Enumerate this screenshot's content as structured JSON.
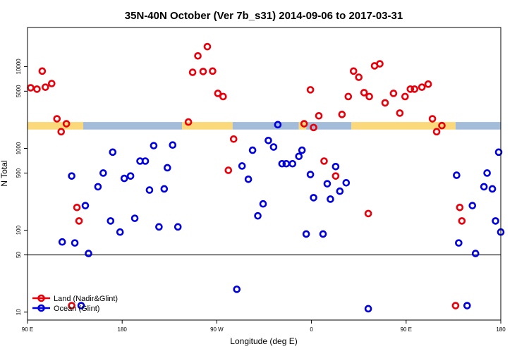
{
  "chart_data": {
    "type": "scatter",
    "title": "35N-40N October (Ver 7b_s31)   2014-09-06 to 2017-03-31",
    "xlabel": "Longitude (deg E)",
    "ylabel": "N Total",
    "x_tick_labels": [
      {
        "x": 90,
        "label": "90 E"
      },
      {
        "x": 180,
        "label": "180"
      },
      {
        "x": 270,
        "label": "90 W"
      },
      {
        "x": 360,
        "label": "0"
      },
      {
        "x": 450,
        "label": "90 E"
      },
      {
        "x": 540,
        "label": "180"
      }
    ],
    "xlim": [
      90,
      540
    ],
    "y_scale": "log",
    "ylim": [
      8,
      30000
    ],
    "y_tick_labels": [
      {
        "y": 10,
        "label": "10"
      },
      {
        "y": 50,
        "label": "50"
      },
      {
        "y": 100,
        "label": "100"
      },
      {
        "y": 500,
        "label": "500"
      },
      {
        "y": 1000,
        "label": "1000"
      },
      {
        "y": 5000,
        "label": "5000"
      },
      {
        "y": 10000,
        "label": "10000"
      }
    ],
    "reference_line_y": 50,
    "surface_band": {
      "y_range": [
        1700,
        2100
      ],
      "land_color": "#fbd87a",
      "ocean_color": "#a3bcd9",
      "segments": [
        {
          "type": "land",
          "x": [
            90,
            143
          ]
        },
        {
          "type": "ocean",
          "x": [
            143,
            237
          ]
        },
        {
          "type": "land",
          "x": [
            237,
            285
          ]
        },
        {
          "type": "ocean",
          "x": [
            285,
            348
          ]
        },
        {
          "type": "land",
          "x": [
            348,
            355
          ]
        },
        {
          "type": "ocean",
          "x": [
            355,
            398
          ]
        },
        {
          "type": "land",
          "x": [
            398,
            497
          ]
        },
        {
          "type": "ocean",
          "x": [
            497,
            540
          ]
        }
      ]
    },
    "legend": {
      "position": "bottom-left"
    },
    "series": [
      {
        "name": "Land (Nadir&Glint)",
        "color": "#e8000b",
        "points": [
          [
            93,
            5500
          ],
          [
            99,
            5300
          ],
          [
            104,
            8800
          ],
          [
            107,
            5600
          ],
          [
            113,
            6200
          ],
          [
            118,
            2300
          ],
          [
            122,
            1600
          ],
          [
            127,
            2000
          ],
          [
            132,
            12
          ],
          [
            137,
            190
          ],
          [
            139,
            130
          ],
          [
            243,
            2100
          ],
          [
            247,
            8500
          ],
          [
            252,
            13500
          ],
          [
            257,
            8700
          ],
          [
            261,
            17500
          ],
          [
            266,
            8800
          ],
          [
            271,
            4700
          ],
          [
            276,
            4300
          ],
          [
            281,
            540
          ],
          [
            286,
            1300
          ],
          [
            353,
            2000
          ],
          [
            359,
            5200
          ],
          [
            362,
            1800
          ],
          [
            367,
            2500
          ],
          [
            372,
            700
          ],
          [
            383,
            460
          ],
          [
            389,
            2600
          ],
          [
            395,
            4300
          ],
          [
            400,
            8800
          ],
          [
            405,
            7400
          ],
          [
            410,
            4800
          ],
          [
            415,
            4300
          ],
          [
            420,
            10200
          ],
          [
            425,
            10800
          ],
          [
            430,
            3600
          ],
          [
            438,
            4700
          ],
          [
            444,
            2700
          ],
          [
            449,
            4300
          ],
          [
            454,
            5300
          ],
          [
            458,
            5300
          ],
          [
            465,
            5600
          ],
          [
            471,
            6100
          ],
          [
            475,
            2300
          ],
          [
            479,
            1600
          ],
          [
            484,
            1900
          ],
          [
            497,
            12
          ],
          [
            501,
            190
          ],
          [
            503,
            130
          ],
          [
            414,
            160
          ]
        ]
      },
      {
        "name": "Ocean (Glint)",
        "color": "#0000e0",
        "points": [
          [
            123,
            72
          ],
          [
            132,
            460
          ],
          [
            135,
            70
          ],
          [
            141,
            12
          ],
          [
            145,
            200
          ],
          [
            148,
            52
          ],
          [
            157,
            340
          ],
          [
            162,
            500
          ],
          [
            169,
            130
          ],
          [
            171,
            900
          ],
          [
            178,
            95
          ],
          [
            182,
            430
          ],
          [
            188,
            460
          ],
          [
            192,
            140
          ],
          [
            197,
            700
          ],
          [
            202,
            700
          ],
          [
            206,
            310
          ],
          [
            210,
            1080
          ],
          [
            215,
            110
          ],
          [
            220,
            320
          ],
          [
            223,
            580
          ],
          [
            228,
            1100
          ],
          [
            233,
            110
          ],
          [
            289,
            19
          ],
          [
            294,
            610
          ],
          [
            300,
            420
          ],
          [
            304,
            950
          ],
          [
            309,
            150
          ],
          [
            314,
            210
          ],
          [
            319,
            1250
          ],
          [
            324,
            1040
          ],
          [
            328,
            1950
          ],
          [
            332,
            650
          ],
          [
            336,
            650
          ],
          [
            342,
            650
          ],
          [
            348,
            800
          ],
          [
            351,
            950
          ],
          [
            355,
            90
          ],
          [
            359,
            480
          ],
          [
            362,
            250
          ],
          [
            371,
            90
          ],
          [
            375,
            370
          ],
          [
            378,
            240
          ],
          [
            383,
            600
          ],
          [
            387,
            300
          ],
          [
            393,
            380
          ],
          [
            414,
            11
          ],
          [
            498,
            470
          ],
          [
            500,
            70
          ],
          [
            508,
            12
          ],
          [
            513,
            200
          ],
          [
            516,
            52
          ],
          [
            524,
            340
          ],
          [
            527,
            500
          ],
          [
            535,
            130
          ],
          [
            538,
            900
          ],
          [
            540,
            95
          ],
          [
            532,
            320
          ]
        ]
      }
    ]
  }
}
